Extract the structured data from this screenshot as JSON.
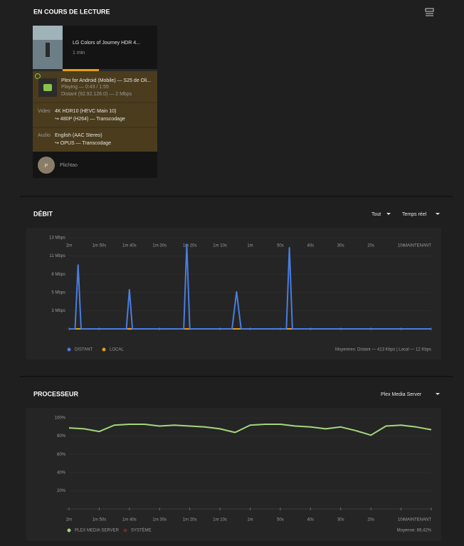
{
  "now_playing": {
    "title": "EN COURS DE LECTURE",
    "media_title": "LG Colors of Journey HDR 4...",
    "duration": "1 min",
    "player": "Plex for Android (Mobile)  —  S25 de Oli...",
    "state": "Playing — 0:43 / 1:55",
    "location": "Distant (92.92.126.0) — 2 Mbps",
    "video_label": "Video",
    "video_source": "4K HDR10 (HEVC Main 10)",
    "video_target": "↪  480P (H264) — Transcodage",
    "audio_label": "Audio",
    "audio_source": "English (AAC Stereo)",
    "audio_target": "↪  OPUS — Transcodage",
    "user_initial": "P",
    "user": "Plichtao"
  },
  "bandwidth": {
    "title": "DÉBIT",
    "filters": [
      "Tout",
      "Temps réel"
    ],
    "averages": "Moyennes: Distant — 413 Kbps | Local — 12 Kbps",
    "chart_data": {
      "type": "line",
      "grid": true,
      "x": [
        -120,
        -118,
        -117,
        -116,
        -101,
        -100,
        -99,
        -82,
        -81,
        -80,
        -66,
        -64.5,
        -63,
        -48,
        -47,
        -46,
        0
      ],
      "series": [
        {
          "name": "LOCAL",
          "color": "#e5a00d",
          "values": [
            0,
            0,
            0,
            0,
            0,
            0,
            0,
            0,
            0,
            0,
            0,
            0,
            0,
            0,
            0,
            0,
            0
          ]
        },
        {
          "name": "DISTANT",
          "color": "#4a7de0",
          "values": [
            0,
            0,
            9.3,
            0,
            0,
            5.7,
            0,
            0,
            12.3,
            0,
            0,
            5.4,
            0,
            0,
            11.8,
            0,
            0
          ]
        }
      ],
      "ylim": [
        0,
        13.25
      ],
      "yticks": [
        {
          "value": 2.65,
          "label": "3 Mbps"
        },
        {
          "value": 5.3,
          "label": "5 Mbps"
        },
        {
          "value": 7.95,
          "label": "8 Mbps"
        },
        {
          "value": 10.6,
          "label": "11 Mbps"
        },
        {
          "value": 13.25,
          "label": "13 Mbps"
        }
      ],
      "xlim": [
        -120,
        0
      ],
      "xticks": [
        {
          "value": -120,
          "label": "2m"
        },
        {
          "value": -110,
          "label": "1m 50s"
        },
        {
          "value": -100,
          "label": "1m 40s"
        },
        {
          "value": -90,
          "label": "1m 30s"
        },
        {
          "value": -80,
          "label": "1m 20s"
        },
        {
          "value": -70,
          "label": "1m 10s"
        },
        {
          "value": -60,
          "label": "1m"
        },
        {
          "value": -50,
          "label": "50s"
        },
        {
          "value": -40,
          "label": "40s"
        },
        {
          "value": -30,
          "label": "30s"
        },
        {
          "value": -20,
          "label": "20s"
        },
        {
          "value": -10,
          "label": "10s"
        },
        {
          "value": 0,
          "label": "MAINTENANT"
        }
      ]
    }
  },
  "cpu": {
    "title": "PROCESSEUR",
    "filter": "Plex Media Server",
    "averages": "Moyenne: 89,42%",
    "chart_data": {
      "type": "line",
      "grid": true,
      "x": [
        -120,
        -115,
        -110,
        -105,
        -100,
        -95,
        -90,
        -85,
        -80,
        -75,
        -70,
        -65,
        -60,
        -55,
        -50,
        -45,
        -40,
        -35,
        -30,
        -25,
        -20,
        -15,
        -10,
        -5,
        0
      ],
      "series": [
        {
          "name": "PLEX MEDIA SERVER",
          "color": "#a4d77c",
          "values": [
            89,
            88,
            85,
            92,
            93,
            93,
            91,
            92,
            91,
            90,
            88,
            84,
            92,
            93,
            93,
            91,
            90,
            88,
            90,
            86,
            81,
            91,
            92,
            90,
            87
          ]
        },
        {
          "name": "SYSTÈME",
          "color": "#6e2a2a",
          "values": [
            null,
            null,
            null,
            null,
            null,
            null,
            null,
            null,
            null,
            null,
            null,
            null,
            null,
            null,
            null,
            null,
            null,
            null,
            null,
            null,
            null,
            null,
            null,
            null,
            null
          ]
        }
      ],
      "ylim": [
        0,
        100
      ],
      "yticks": [
        {
          "value": 20,
          "label": "20%"
        },
        {
          "value": 40,
          "label": "40%"
        },
        {
          "value": 60,
          "label": "60%"
        },
        {
          "value": 80,
          "label": "80%"
        },
        {
          "value": 100,
          "label": "100%"
        }
      ],
      "xlim": [
        -120,
        0
      ],
      "xticks": [
        {
          "value": -120,
          "label": "2m"
        },
        {
          "value": -110,
          "label": "1m 50s"
        },
        {
          "value": -100,
          "label": "1m 40s"
        },
        {
          "value": -90,
          "label": "1m 30s"
        },
        {
          "value": -80,
          "label": "1m 20s"
        },
        {
          "value": -70,
          "label": "1m 10s"
        },
        {
          "value": -60,
          "label": "1m"
        },
        {
          "value": -50,
          "label": "50s"
        },
        {
          "value": -40,
          "label": "40s"
        },
        {
          "value": -30,
          "label": "30s"
        },
        {
          "value": -20,
          "label": "20s"
        },
        {
          "value": -10,
          "label": "10s"
        },
        {
          "value": 0,
          "label": "MAINTENANT"
        }
      ]
    }
  }
}
